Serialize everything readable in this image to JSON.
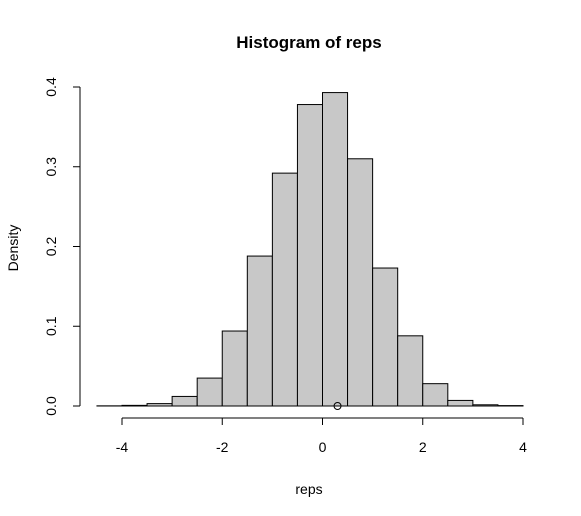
{
  "chart_data": {
    "type": "bar",
    "title": "Histogram of reps",
    "xlabel": "reps",
    "ylabel": "Density",
    "xlim": [
      -4.5,
      4.0
    ],
    "ylim": [
      0,
      0.4
    ],
    "x_ticks": [
      -4,
      -2,
      0,
      2,
      4
    ],
    "x_tick_labels": [
      "-4",
      "-2",
      "0",
      "2",
      "4"
    ],
    "y_ticks": [
      0.0,
      0.1,
      0.2,
      0.3,
      0.4
    ],
    "y_tick_labels": [
      "0.0",
      "0.1",
      "0.2",
      "0.3",
      "0.4"
    ],
    "bin_edges": [
      -4.5,
      -4.0,
      -3.5,
      -3.0,
      -2.5,
      -2.0,
      -1.5,
      -1.0,
      -0.5,
      0.0,
      0.5,
      1.0,
      1.5,
      2.0,
      2.5,
      3.0,
      3.5,
      4.0
    ],
    "values": [
      0.0002,
      0.0008,
      0.003,
      0.012,
      0.035,
      0.094,
      0.188,
      0.292,
      0.378,
      0.393,
      0.31,
      0.173,
      0.088,
      0.028,
      0.007,
      0.0015,
      0.0005
    ],
    "bar_color": "#c8c8c8",
    "marker_point": {
      "x": 0.3,
      "y": 0.0
    },
    "grid": false
  }
}
